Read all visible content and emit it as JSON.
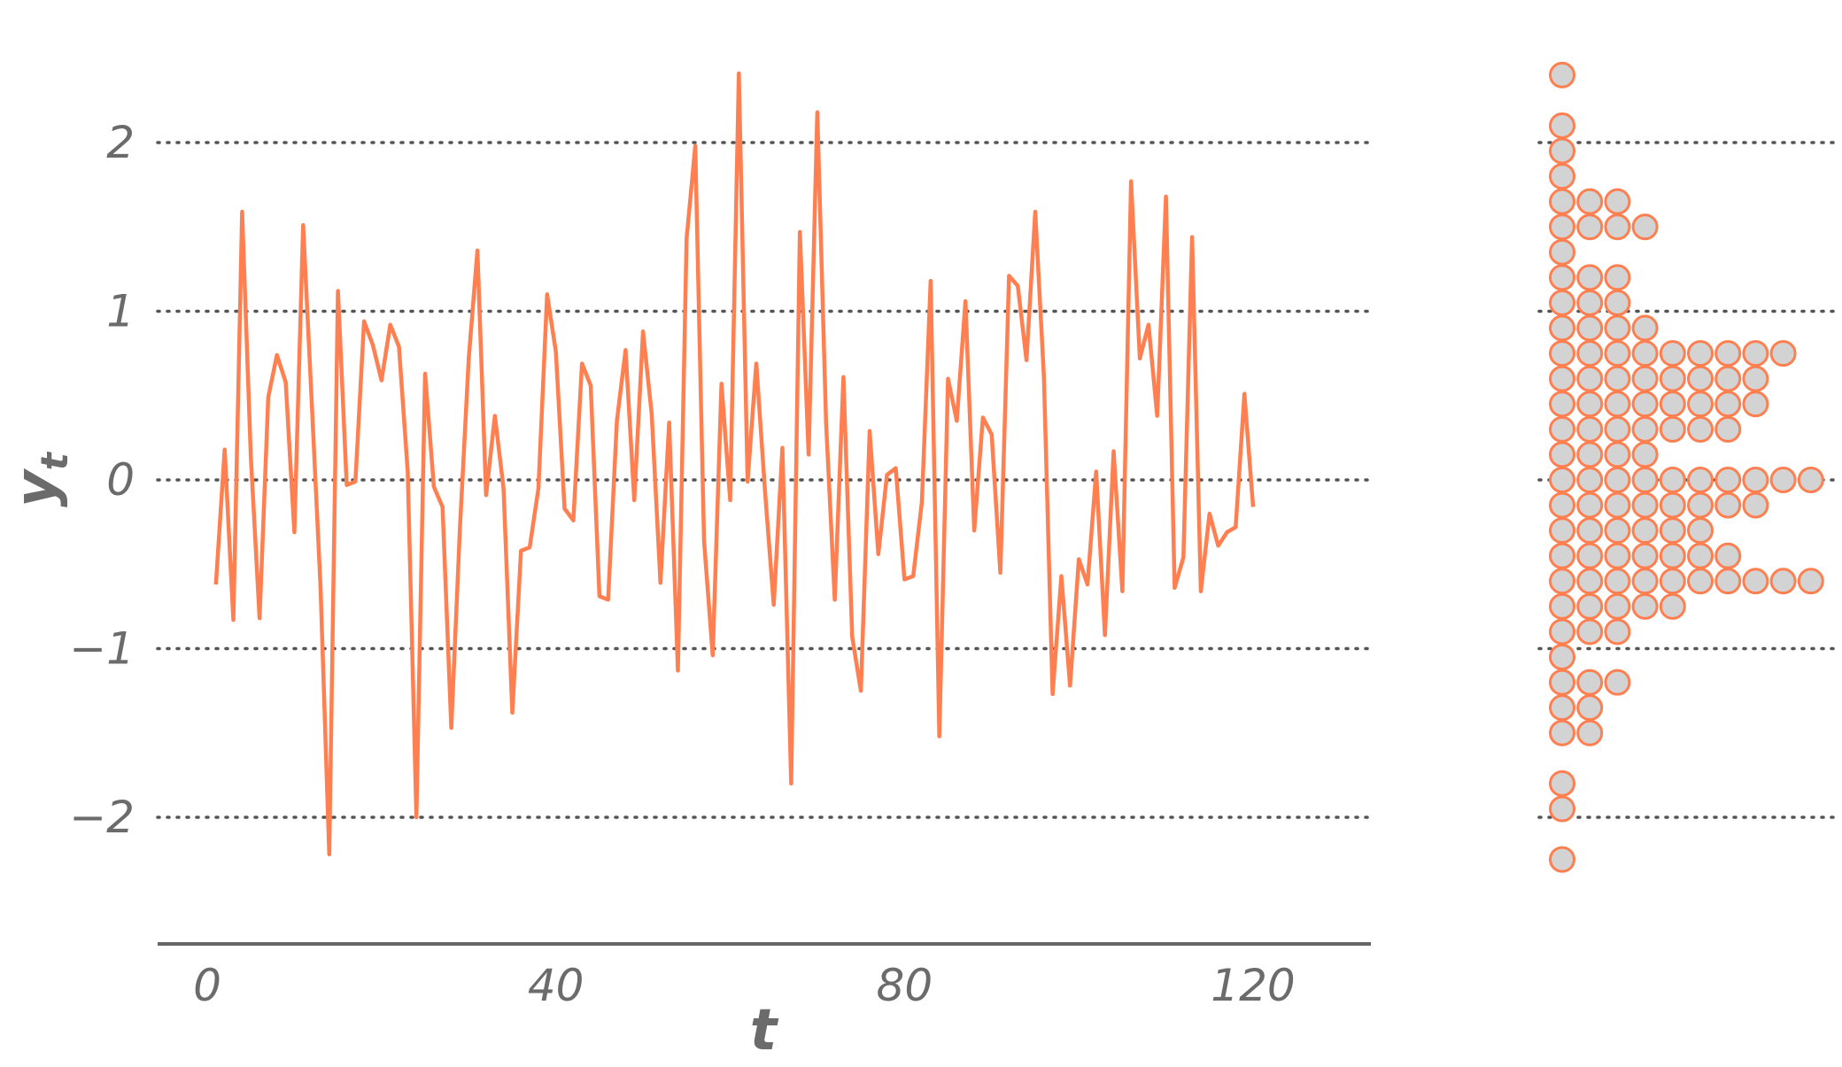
{
  "chart_data": [
    {
      "type": "line",
      "xlabel": "t",
      "ylabel": "y",
      "ylabel_subscript": "t",
      "xlim": [
        -5,
        125
      ],
      "ylim": [
        -2.75,
        2.45
      ],
      "x_ticks": [
        0,
        40,
        80,
        120
      ],
      "x_tick_labels": [
        "0",
        "40",
        "80",
        "120"
      ],
      "y_ticks": [
        -2,
        -1,
        0,
        1,
        2
      ],
      "y_tick_labels": [
        "−2",
        "−1",
        "0",
        "1",
        "2"
      ],
      "grid": "horizontal dotted",
      "line_color": "#FF7F50",
      "series": [
        {
          "x": [
            1,
            2,
            3,
            4,
            5,
            6,
            7,
            8,
            9,
            10,
            11,
            12,
            13,
            14,
            15,
            16,
            17,
            18,
            19,
            20,
            21,
            22,
            23,
            24,
            25,
            26,
            27,
            28,
            29,
            30,
            31,
            32,
            33,
            34,
            35,
            36,
            37,
            38,
            39,
            40,
            41,
            42,
            43,
            44,
            45,
            46,
            47,
            48,
            49,
            50,
            51,
            52,
            53,
            54,
            55,
            56,
            57,
            58,
            59,
            60,
            61,
            62,
            63,
            64,
            65,
            66,
            67,
            68,
            69,
            70,
            71,
            72,
            73,
            74,
            75,
            76,
            77,
            78,
            79,
            80,
            81,
            82,
            83,
            84,
            85,
            86,
            87,
            88,
            89,
            90,
            91,
            92,
            93,
            94,
            95,
            96,
            97,
            98,
            99,
            100,
            101,
            102,
            103,
            104,
            105,
            106,
            107,
            108,
            109,
            110,
            111,
            112,
            113,
            114,
            115,
            116,
            117,
            118,
            119,
            120
          ],
          "values": [
            -0.62,
            0.18,
            -0.83,
            1.59,
            0.14,
            -0.82,
            0.49,
            0.74,
            0.58,
            -0.31,
            1.51,
            0.45,
            -0.63,
            -2.22,
            1.12,
            -0.03,
            -0.01,
            0.94,
            0.8,
            0.59,
            0.92,
            0.79,
            0.05,
            -2.0,
            0.63,
            -0.04,
            -0.16,
            -1.47,
            -0.28,
            0.72,
            1.36,
            -0.09,
            0.38,
            -0.05,
            -1.38,
            -0.42,
            -0.4,
            -0.05,
            1.1,
            0.76,
            -0.17,
            -0.24,
            0.69,
            0.56,
            -0.69,
            -0.71,
            0.35,
            0.77,
            -0.12,
            0.88,
            0.39,
            -0.61,
            0.34,
            -1.13,
            1.43,
            1.98,
            -0.36,
            -1.04,
            0.57,
            -0.12,
            2.41,
            -0.01,
            0.69,
            -0.07,
            -0.74,
            0.19,
            -1.8,
            1.47,
            0.15,
            2.18,
            0.34,
            -0.71,
            0.61,
            -0.93,
            -1.25,
            0.29,
            -0.44,
            0.03,
            0.07,
            -0.59,
            -0.57,
            -0.13,
            1.18,
            -1.52,
            0.6,
            0.35,
            1.06,
            -0.3,
            0.37,
            0.27,
            -0.55,
            1.21,
            1.15,
            0.71,
            1.59,
            0.61,
            -1.27,
            -0.57,
            -1.22,
            -0.47,
            -0.62,
            0.05,
            -0.92,
            0.17,
            -0.66,
            1.77,
            0.72,
            0.92,
            0.38,
            1.68,
            -0.64,
            -0.46,
            1.44,
            -0.66,
            -0.2,
            -0.39,
            -0.31,
            -0.28,
            0.51,
            -0.16
          ]
        }
      ]
    },
    {
      "type": "dotplot",
      "orientation": "horizontal",
      "ylim": [
        -2.75,
        2.45
      ],
      "dot_fill": "#D3D3D3",
      "dot_stroke": "#FF7F50",
      "bins": [
        {
          "y": 2.4,
          "count": 1
        },
        {
          "y": 2.1,
          "count": 1
        },
        {
          "y": 1.95,
          "count": 1
        },
        {
          "y": 1.8,
          "count": 1
        },
        {
          "y": 1.65,
          "count": 3
        },
        {
          "y": 1.5,
          "count": 4
        },
        {
          "y": 1.35,
          "count": 1
        },
        {
          "y": 1.2,
          "count": 3
        },
        {
          "y": 1.05,
          "count": 3
        },
        {
          "y": 0.9,
          "count": 4
        },
        {
          "y": 0.75,
          "count": 9
        },
        {
          "y": 0.6,
          "count": 8
        },
        {
          "y": 0.45,
          "count": 8
        },
        {
          "y": 0.3,
          "count": 7
        },
        {
          "y": 0.15,
          "count": 4
        },
        {
          "y": 0.0,
          "count": 10
        },
        {
          "y": -0.15,
          "count": 8
        },
        {
          "y": -0.3,
          "count": 6
        },
        {
          "y": -0.45,
          "count": 7
        },
        {
          "y": -0.6,
          "count": 10
        },
        {
          "y": -0.75,
          "count": 5
        },
        {
          "y": -0.9,
          "count": 3
        },
        {
          "y": -1.05,
          "count": 1
        },
        {
          "y": -1.2,
          "count": 3
        },
        {
          "y": -1.35,
          "count": 2
        },
        {
          "y": -1.5,
          "count": 2
        },
        {
          "y": -1.8,
          "count": 1
        },
        {
          "y": -1.95,
          "count": 1
        },
        {
          "y": -2.25,
          "count": 1
        }
      ]
    }
  ]
}
